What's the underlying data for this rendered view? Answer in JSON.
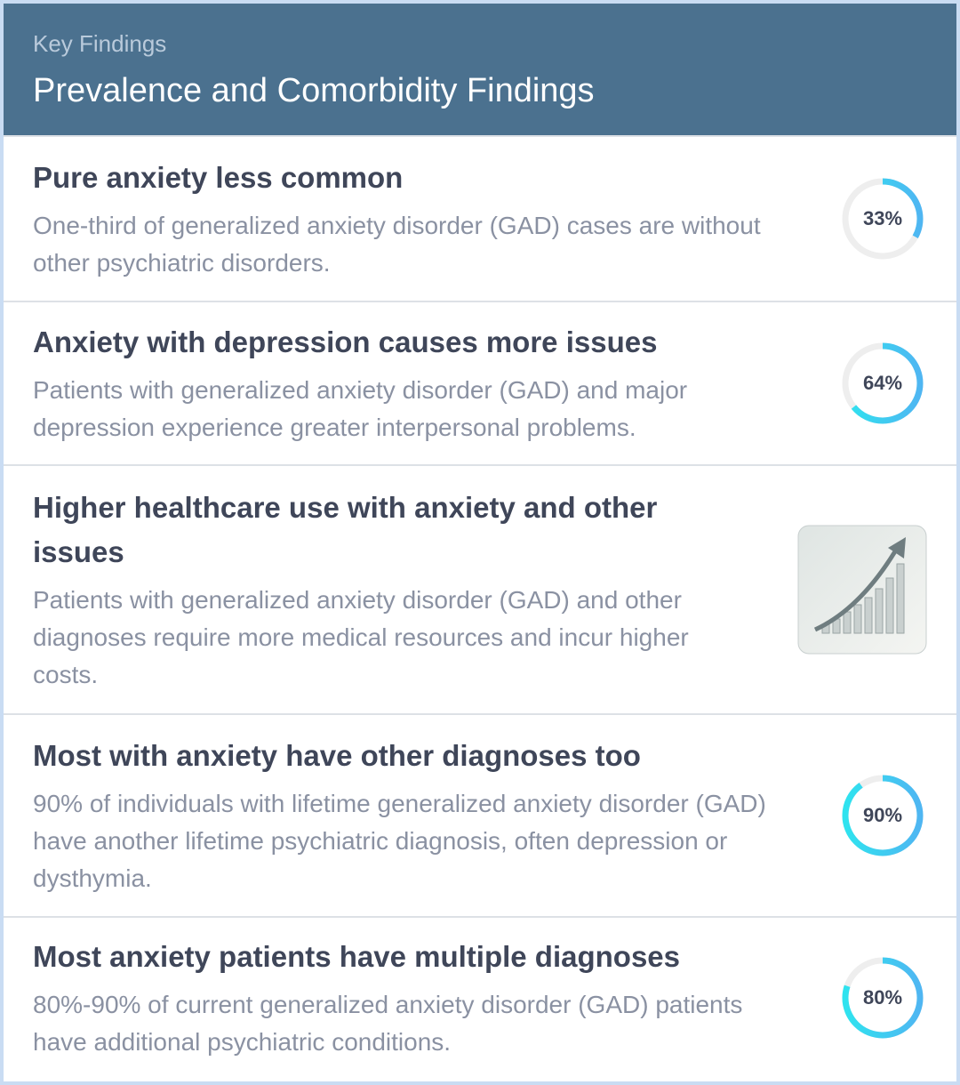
{
  "header": {
    "subtitle": "Key Findings",
    "title": "Prevalence and Comorbidity Findings"
  },
  "items": [
    {
      "title": "Pure anxiety less common",
      "description": "One-third of generalized anxiety disorder (GAD) cases are without other psychiatric disorders.",
      "value": 33,
      "value_label": "33%"
    },
    {
      "title": "Anxiety with depression causes more issues",
      "description": "Patients with generalized anxiety disorder (GAD) and major depression experience greater interpersonal problems.",
      "value": 64,
      "value_label": "64%"
    },
    {
      "title": "Higher healthcare use with anxiety and other issues",
      "description": "Patients with generalized anxiety disorder (GAD) and other diagnoses require more medical resources and incur higher costs."
    },
    {
      "title": "Most with anxiety have other diagnoses too",
      "description": "90% of individuals with lifetime generalized anxiety disorder (GAD) have another lifetime psychiatric diagnosis, often depression or dysthymia.",
      "value": 90,
      "value_label": "90%"
    },
    {
      "title": "Most anxiety patients have multiple diagnoses",
      "description": "80%-90% of current generalized anxiety disorder (GAD) patients have additional psychiatric conditions.",
      "value": 80,
      "value_label": "80%"
    }
  ]
}
